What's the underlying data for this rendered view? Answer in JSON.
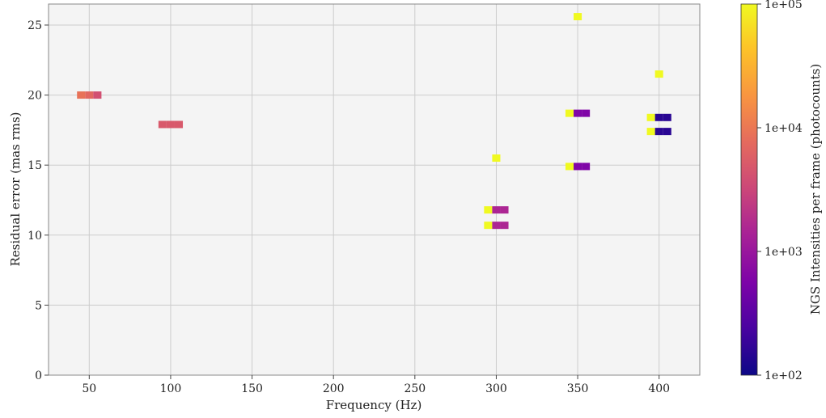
{
  "chart_data": {
    "type": "heatmap",
    "xlabel": "Frequency (Hz)",
    "ylabel": "Residual error (mas rms)",
    "xlim": [
      25,
      425
    ],
    "ylim": [
      0,
      26.5
    ],
    "xticks": [
      50,
      100,
      150,
      200,
      250,
      300,
      350,
      400
    ],
    "yticks": [
      0,
      5,
      10,
      15,
      20,
      25
    ],
    "xtick_labels": [
      "50",
      "100",
      "150",
      "200",
      "250",
      "300",
      "350",
      "400"
    ],
    "ytick_labels": [
      "0",
      "5",
      "10",
      "15",
      "20",
      "25"
    ],
    "grid": true,
    "colorbar": {
      "label": "NGS Intensities per frame (photocounts)",
      "scale": "log",
      "range": [
        100,
        100000
      ],
      "ticks": [
        100,
        1000,
        10000,
        100000
      ],
      "tick_labels": [
        "1e+02",
        "1e+03",
        "1e+04",
        "1e+05"
      ],
      "colormap": "plasma"
    },
    "points": [
      {
        "x": 45,
        "y": 20.0,
        "intensity": 9000
      },
      {
        "x": 50,
        "y": 20.0,
        "intensity": 7000
      },
      {
        "x": 55,
        "y": 20.0,
        "intensity": 4000
      },
      {
        "x": 95,
        "y": 17.9,
        "intensity": 5000
      },
      {
        "x": 100,
        "y": 17.9,
        "intensity": 5000
      },
      {
        "x": 105,
        "y": 17.9,
        "intensity": 5000
      },
      {
        "x": 300,
        "y": 15.5,
        "intensity": 100000
      },
      {
        "x": 295,
        "y": 11.8,
        "intensity": 100000
      },
      {
        "x": 300,
        "y": 11.8,
        "intensity": 1500
      },
      {
        "x": 305,
        "y": 11.8,
        "intensity": 1500
      },
      {
        "x": 295,
        "y": 10.7,
        "intensity": 100000
      },
      {
        "x": 300,
        "y": 10.7,
        "intensity": 1500
      },
      {
        "x": 305,
        "y": 10.7,
        "intensity": 1500
      },
      {
        "x": 350,
        "y": 25.6,
        "intensity": 100000
      },
      {
        "x": 345,
        "y": 18.7,
        "intensity": 100000
      },
      {
        "x": 350,
        "y": 18.7,
        "intensity": 600
      },
      {
        "x": 355,
        "y": 18.7,
        "intensity": 600
      },
      {
        "x": 345,
        "y": 14.9,
        "intensity": 100000
      },
      {
        "x": 350,
        "y": 14.9,
        "intensity": 600
      },
      {
        "x": 355,
        "y": 14.9,
        "intensity": 600
      },
      {
        "x": 400,
        "y": 21.5,
        "intensity": 100000
      },
      {
        "x": 395,
        "y": 18.4,
        "intensity": 100000
      },
      {
        "x": 400,
        "y": 18.4,
        "intensity": 150
      },
      {
        "x": 405,
        "y": 18.4,
        "intensity": 150
      },
      {
        "x": 395,
        "y": 17.4,
        "intensity": 100000
      },
      {
        "x": 400,
        "y": 17.4,
        "intensity": 150
      },
      {
        "x": 405,
        "y": 17.4,
        "intensity": 150
      }
    ]
  }
}
